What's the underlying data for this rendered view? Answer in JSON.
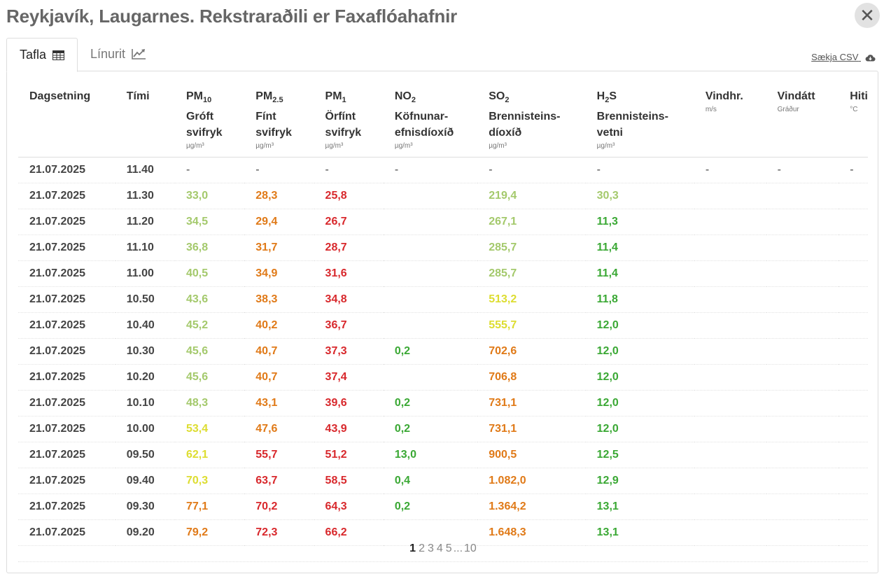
{
  "header": {
    "title": "Reykjavík, Laugarnes. Rekstraraðili er Faxaflóahafnir",
    "close_label": "✕"
  },
  "tabs": [
    {
      "label": "Tafla",
      "icon": "table-icon",
      "active": true
    },
    {
      "label": "Línurit",
      "icon": "line-chart-icon",
      "active": false
    }
  ],
  "download": {
    "label": "Sækja CSV",
    "icon": "cloud-download-icon"
  },
  "columns": [
    {
      "id": "date",
      "label": "Dagsetning"
    },
    {
      "id": "time",
      "label": "Tími"
    },
    {
      "id": "pm10",
      "label": "PM",
      "sub": "10",
      "name": "Gróft svifryk",
      "unit": "µg/m³"
    },
    {
      "id": "pm25",
      "label": "PM",
      "sub": "2.5",
      "name": "Fínt svifryk",
      "unit": "µg/m³"
    },
    {
      "id": "pm1",
      "label": "PM",
      "sub": "1",
      "name": "Örfínt svifryk",
      "unit": "µg/m³"
    },
    {
      "id": "no2",
      "label": "NO",
      "sub": "2",
      "name": "Köfnunar- efnisdíoxíð",
      "unit": "µg/m³"
    },
    {
      "id": "so2",
      "label": "SO",
      "sub": "2",
      "name": "Brennisteins- díoxíð",
      "unit": "µg/m³"
    },
    {
      "id": "h2s",
      "label": "H",
      "sub": "2",
      "label_after": "S",
      "name": "Brennisteins- vetni",
      "unit": "µg/m³"
    },
    {
      "id": "wind_speed",
      "label": "Vindhr.",
      "unit": "m/s"
    },
    {
      "id": "wind_dir",
      "label": "Vindátt",
      "unit": "Gráður"
    },
    {
      "id": "temp",
      "label": "Hiti",
      "unit": "°C"
    }
  ],
  "colors": {
    "light_green": "#a4c96c",
    "yellow": "#dddd30",
    "orange": "#e07a18",
    "red": "#d8282c",
    "green": "#3aa834"
  },
  "rows": [
    {
      "date": "21.07.2025",
      "time": "11.40",
      "cells": [
        [
          "-",
          "dash"
        ],
        [
          "-",
          "dash"
        ],
        [
          "-",
          "dash"
        ],
        [
          "-",
          "dash"
        ],
        [
          "-",
          "dash"
        ],
        [
          "-",
          "dash"
        ],
        [
          "-",
          "dash"
        ],
        [
          "-",
          "dash"
        ],
        [
          "-",
          "dash"
        ]
      ]
    },
    {
      "date": "21.07.2025",
      "time": "11.30",
      "cells": [
        [
          "33,0",
          "lg"
        ],
        [
          "28,3",
          "o"
        ],
        [
          "25,8",
          "r"
        ],
        [
          "",
          ""
        ],
        [
          "219,4",
          "lg"
        ],
        [
          "30,3",
          "lg"
        ],
        [
          "",
          ""
        ],
        [
          "",
          ""
        ],
        [
          "",
          ""
        ]
      ]
    },
    {
      "date": "21.07.2025",
      "time": "11.20",
      "cells": [
        [
          "34,5",
          "lg"
        ],
        [
          "29,4",
          "o"
        ],
        [
          "26,7",
          "r"
        ],
        [
          "",
          ""
        ],
        [
          "267,1",
          "lg"
        ],
        [
          "11,3",
          "g"
        ],
        [
          "",
          ""
        ],
        [
          "",
          ""
        ],
        [
          "",
          ""
        ]
      ]
    },
    {
      "date": "21.07.2025",
      "time": "11.10",
      "cells": [
        [
          "36,8",
          "lg"
        ],
        [
          "31,7",
          "o"
        ],
        [
          "28,7",
          "r"
        ],
        [
          "",
          ""
        ],
        [
          "285,7",
          "lg"
        ],
        [
          "11,4",
          "g"
        ],
        [
          "",
          ""
        ],
        [
          "",
          ""
        ],
        [
          "",
          ""
        ]
      ]
    },
    {
      "date": "21.07.2025",
      "time": "11.00",
      "cells": [
        [
          "40,5",
          "lg"
        ],
        [
          "34,9",
          "o"
        ],
        [
          "31,6",
          "r"
        ],
        [
          "",
          ""
        ],
        [
          "285,7",
          "lg"
        ],
        [
          "11,4",
          "g"
        ],
        [
          "",
          ""
        ],
        [
          "",
          ""
        ],
        [
          "",
          ""
        ]
      ]
    },
    {
      "date": "21.07.2025",
      "time": "10.50",
      "cells": [
        [
          "43,6",
          "lg"
        ],
        [
          "38,3",
          "o"
        ],
        [
          "34,8",
          "r"
        ],
        [
          "",
          ""
        ],
        [
          "513,2",
          "y"
        ],
        [
          "11,8",
          "g"
        ],
        [
          "",
          ""
        ],
        [
          "",
          ""
        ],
        [
          "",
          ""
        ]
      ]
    },
    {
      "date": "21.07.2025",
      "time": "10.40",
      "cells": [
        [
          "45,2",
          "lg"
        ],
        [
          "40,2",
          "o"
        ],
        [
          "36,7",
          "r"
        ],
        [
          "",
          ""
        ],
        [
          "555,7",
          "y"
        ],
        [
          "12,0",
          "g"
        ],
        [
          "",
          ""
        ],
        [
          "",
          ""
        ],
        [
          "",
          ""
        ]
      ]
    },
    {
      "date": "21.07.2025",
      "time": "10.30",
      "cells": [
        [
          "45,6",
          "lg"
        ],
        [
          "40,7",
          "o"
        ],
        [
          "37,3",
          "r"
        ],
        [
          "0,2",
          "g"
        ],
        [
          "702,6",
          "o"
        ],
        [
          "12,0",
          "g"
        ],
        [
          "",
          ""
        ],
        [
          "",
          ""
        ],
        [
          "",
          ""
        ]
      ]
    },
    {
      "date": "21.07.2025",
      "time": "10.20",
      "cells": [
        [
          "45,6",
          "lg"
        ],
        [
          "40,7",
          "o"
        ],
        [
          "37,4",
          "r"
        ],
        [
          "",
          ""
        ],
        [
          "706,8",
          "o"
        ],
        [
          "12,0",
          "g"
        ],
        [
          "",
          ""
        ],
        [
          "",
          ""
        ],
        [
          "",
          ""
        ]
      ]
    },
    {
      "date": "21.07.2025",
      "time": "10.10",
      "cells": [
        [
          "48,3",
          "lg"
        ],
        [
          "43,1",
          "o"
        ],
        [
          "39,6",
          "r"
        ],
        [
          "0,2",
          "g"
        ],
        [
          "731,1",
          "o"
        ],
        [
          "12,0",
          "g"
        ],
        [
          "",
          ""
        ],
        [
          "",
          ""
        ],
        [
          "",
          ""
        ]
      ]
    },
    {
      "date": "21.07.2025",
      "time": "10.00",
      "cells": [
        [
          "53,4",
          "y"
        ],
        [
          "47,6",
          "o"
        ],
        [
          "43,9",
          "r"
        ],
        [
          "0,2",
          "g"
        ],
        [
          "731,1",
          "o"
        ],
        [
          "12,0",
          "g"
        ],
        [
          "",
          ""
        ],
        [
          "",
          ""
        ],
        [
          "",
          ""
        ]
      ]
    },
    {
      "date": "21.07.2025",
      "time": "09.50",
      "cells": [
        [
          "62,1",
          "y"
        ],
        [
          "55,7",
          "r"
        ],
        [
          "51,2",
          "r"
        ],
        [
          "13,0",
          "g"
        ],
        [
          "900,5",
          "o"
        ],
        [
          "12,5",
          "g"
        ],
        [
          "",
          ""
        ],
        [
          "",
          ""
        ],
        [
          "",
          ""
        ]
      ]
    },
    {
      "date": "21.07.2025",
      "time": "09.40",
      "cells": [
        [
          "70,3",
          "y"
        ],
        [
          "63,7",
          "r"
        ],
        [
          "58,5",
          "r"
        ],
        [
          "0,4",
          "g"
        ],
        [
          "1.082,0",
          "o"
        ],
        [
          "12,9",
          "g"
        ],
        [
          "",
          ""
        ],
        [
          "",
          ""
        ],
        [
          "",
          ""
        ]
      ]
    },
    {
      "date": "21.07.2025",
      "time": "09.30",
      "cells": [
        [
          "77,1",
          "o"
        ],
        [
          "70,2",
          "r"
        ],
        [
          "64,3",
          "r"
        ],
        [
          "0,2",
          "g"
        ],
        [
          "1.364,2",
          "o"
        ],
        [
          "13,1",
          "g"
        ],
        [
          "",
          ""
        ],
        [
          "",
          ""
        ],
        [
          "",
          ""
        ]
      ]
    },
    {
      "date": "21.07.2025",
      "time": "09.20",
      "cells": [
        [
          "79,2",
          "o"
        ],
        [
          "72,3",
          "r"
        ],
        [
          "66,2",
          "r"
        ],
        [
          "",
          ""
        ],
        [
          "1.648,3",
          "o"
        ],
        [
          "13,1",
          "g"
        ],
        [
          "",
          ""
        ],
        [
          "",
          ""
        ],
        [
          "",
          ""
        ]
      ]
    }
  ],
  "pagination": {
    "pages": [
      "1",
      "2",
      "3",
      "4",
      "5"
    ],
    "ellipsis": "...",
    "last": "10",
    "current": "1"
  }
}
